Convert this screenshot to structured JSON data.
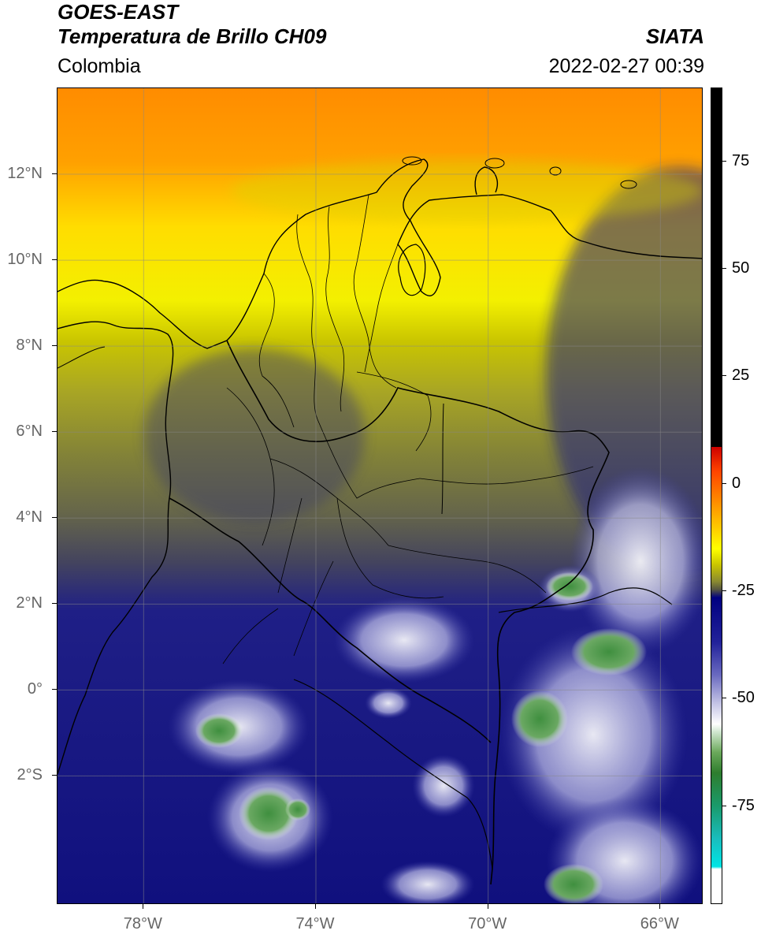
{
  "header": {
    "satellite": "GOES-EAST",
    "product": "Temperatura de Brillo CH09",
    "organization": "SIATA",
    "region": "Colombia",
    "datetime": "2022-02-27 00:39"
  },
  "map": {
    "extent": {
      "lon_min": -80,
      "lon_max": -65,
      "lat_min": -5,
      "lat_max": 14
    },
    "lat_ticks": [
      {
        "value": 12,
        "label": "12°N"
      },
      {
        "value": 10,
        "label": "10°N"
      },
      {
        "value": 8,
        "label": "8°N"
      },
      {
        "value": 6,
        "label": "6°N"
      },
      {
        "value": 4,
        "label": "4°N"
      },
      {
        "value": 2,
        "label": "2°N"
      },
      {
        "value": 0,
        "label": "0°"
      },
      {
        "value": -2,
        "label": "2°S"
      }
    ],
    "lon_ticks": [
      {
        "value": -78,
        "label": "78°W"
      },
      {
        "value": -74,
        "label": "74°W"
      },
      {
        "value": -70,
        "label": "70°W"
      },
      {
        "value": -66,
        "label": "66°W"
      }
    ]
  },
  "colorbar": {
    "range": [
      -98,
      92
    ],
    "ticks": [
      {
        "value": 75,
        "label": "75"
      },
      {
        "value": 50,
        "label": "50"
      },
      {
        "value": 25,
        "label": "25"
      },
      {
        "value": 0,
        "label": "0"
      },
      {
        "value": -25,
        "label": "-25"
      },
      {
        "value": -50,
        "label": "-50"
      },
      {
        "value": -75,
        "label": "-75"
      }
    ]
  },
  "colors": {
    "warm_orange": "#ff8c00",
    "yellow": "#ffee00",
    "olive": "#8a8a35",
    "navy": "#12127f",
    "cloud_white": "#ffffff",
    "cold_green": "#4a9a4a"
  }
}
